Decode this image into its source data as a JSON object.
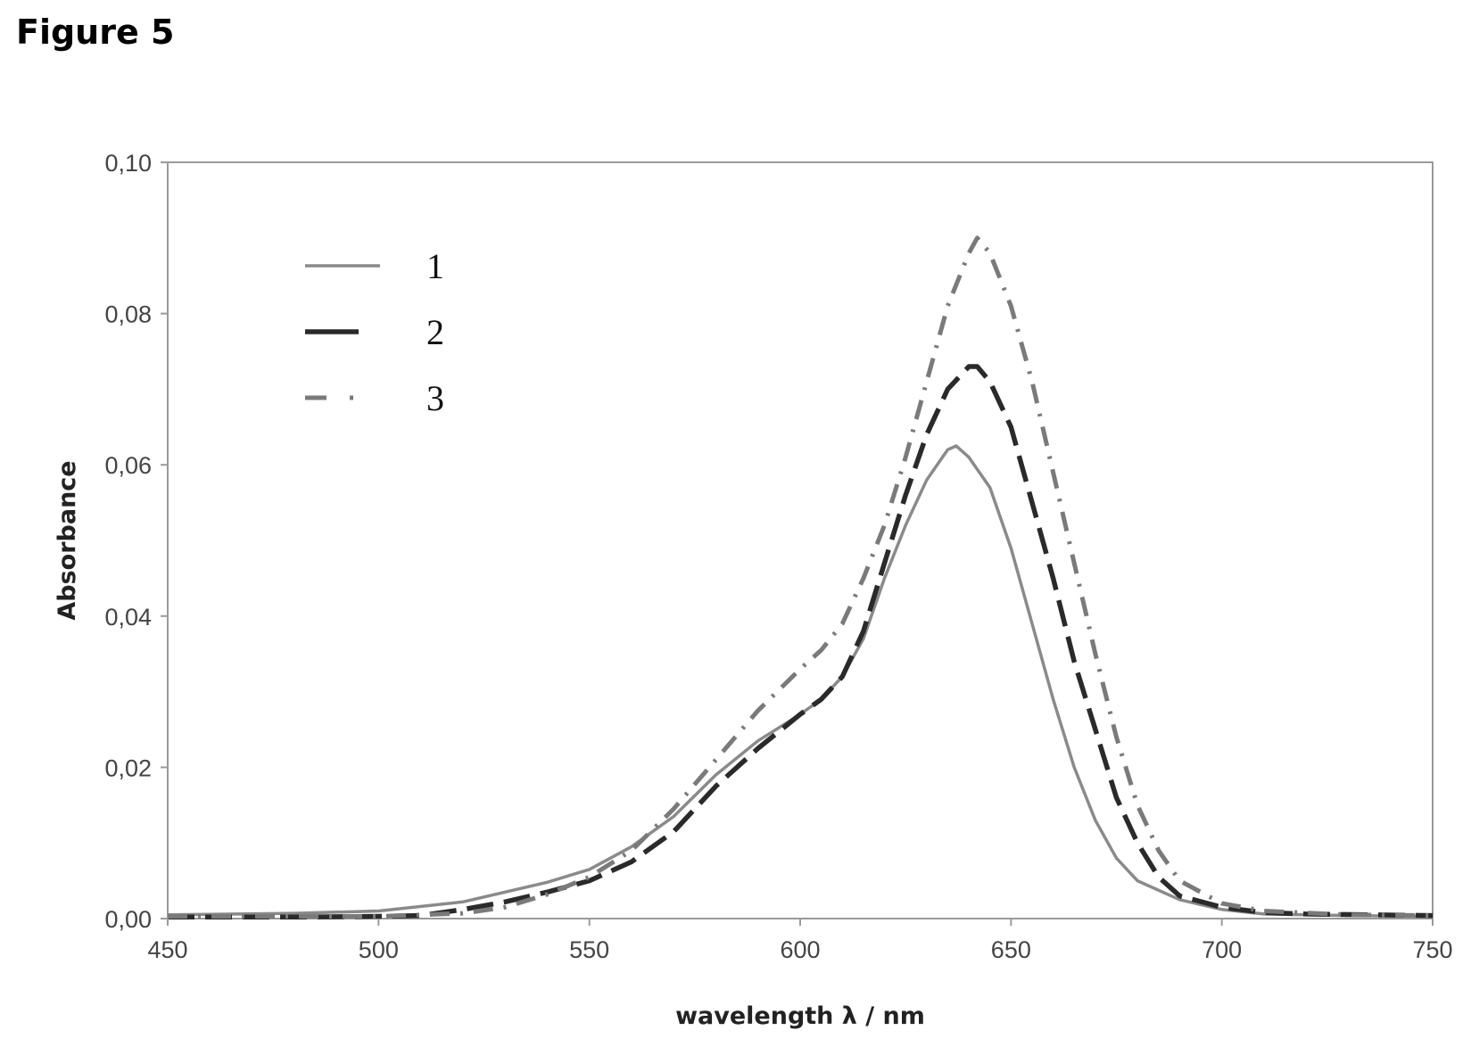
{
  "figure_title": "Figure 5",
  "chart_data": {
    "type": "line",
    "xlabel": "wavelength λ / nm",
    "ylabel": "Absorbance",
    "xlim": [
      450,
      750
    ],
    "ylim": [
      0,
      0.1
    ],
    "x_ticks": [
      450,
      500,
      550,
      600,
      650,
      700,
      750
    ],
    "x_tick_labels": [
      "450",
      "500",
      "550",
      "600",
      "650",
      "700",
      "750"
    ],
    "y_ticks": [
      0,
      0.02,
      0.04,
      0.06,
      0.08,
      0.1
    ],
    "y_tick_labels": [
      "0,00",
      "0,02",
      "0,04",
      "0,06",
      "0,08",
      "0,10"
    ],
    "grid": false,
    "legend_position": "top-left",
    "series": [
      {
        "name": "1",
        "style": "solid",
        "color": "#8a8a8a",
        "points": [
          [
            450,
            0.0005
          ],
          [
            480,
            0.0007
          ],
          [
            500,
            0.001
          ],
          [
            520,
            0.0022
          ],
          [
            540,
            0.0048
          ],
          [
            550,
            0.0065
          ],
          [
            560,
            0.0095
          ],
          [
            570,
            0.0135
          ],
          [
            580,
            0.019
          ],
          [
            590,
            0.0235
          ],
          [
            600,
            0.027
          ],
          [
            605,
            0.029
          ],
          [
            610,
            0.032
          ],
          [
            615,
            0.037
          ],
          [
            620,
            0.045
          ],
          [
            625,
            0.052
          ],
          [
            630,
            0.058
          ],
          [
            635,
            0.062
          ],
          [
            637,
            0.0625
          ],
          [
            640,
            0.061
          ],
          [
            645,
            0.057
          ],
          [
            650,
            0.049
          ],
          [
            655,
            0.039
          ],
          [
            660,
            0.029
          ],
          [
            665,
            0.02
          ],
          [
            670,
            0.013
          ],
          [
            675,
            0.008
          ],
          [
            680,
            0.005
          ],
          [
            690,
            0.0025
          ],
          [
            700,
            0.0012
          ],
          [
            710,
            0.0006
          ],
          [
            730,
            0.0004
          ],
          [
            750,
            0.0003
          ]
        ]
      },
      {
        "name": "2",
        "style": "dashed",
        "color": "#2a2a2a",
        "points": [
          [
            450,
            0.0002
          ],
          [
            480,
            0.0002
          ],
          [
            500,
            0.0003
          ],
          [
            510,
            0.0004
          ],
          [
            520,
            0.0012
          ],
          [
            530,
            0.0022
          ],
          [
            540,
            0.0035
          ],
          [
            550,
            0.005
          ],
          [
            560,
            0.0075
          ],
          [
            570,
            0.0115
          ],
          [
            580,
            0.0175
          ],
          [
            590,
            0.0225
          ],
          [
            600,
            0.027
          ],
          [
            605,
            0.029
          ],
          [
            610,
            0.032
          ],
          [
            615,
            0.038
          ],
          [
            620,
            0.047
          ],
          [
            625,
            0.056
          ],
          [
            630,
            0.064
          ],
          [
            635,
            0.07
          ],
          [
            640,
            0.073
          ],
          [
            642,
            0.073
          ],
          [
            645,
            0.071
          ],
          [
            650,
            0.065
          ],
          [
            655,
            0.055
          ],
          [
            660,
            0.045
          ],
          [
            665,
            0.034
          ],
          [
            670,
            0.025
          ],
          [
            675,
            0.016
          ],
          [
            680,
            0.01
          ],
          [
            685,
            0.0055
          ],
          [
            690,
            0.003
          ],
          [
            700,
            0.0015
          ],
          [
            710,
            0.0008
          ],
          [
            720,
            0.0006
          ],
          [
            735,
            0.0005
          ],
          [
            750,
            0.0004
          ]
        ]
      },
      {
        "name": "3",
        "style": "dash-dot",
        "color": "#7a7a7a",
        "points": [
          [
            450,
            0.0003
          ],
          [
            500,
            0.0003
          ],
          [
            520,
            0.0007
          ],
          [
            530,
            0.0015
          ],
          [
            540,
            0.0032
          ],
          [
            550,
            0.0055
          ],
          [
            560,
            0.009
          ],
          [
            570,
            0.0145
          ],
          [
            580,
            0.021
          ],
          [
            590,
            0.0275
          ],
          [
            600,
            0.033
          ],
          [
            605,
            0.0355
          ],
          [
            610,
            0.039
          ],
          [
            615,
            0.045
          ],
          [
            620,
            0.052
          ],
          [
            625,
            0.061
          ],
          [
            630,
            0.071
          ],
          [
            635,
            0.081
          ],
          [
            640,
            0.088
          ],
          [
            642,
            0.09
          ],
          [
            645,
            0.088
          ],
          [
            650,
            0.081
          ],
          [
            655,
            0.071
          ],
          [
            660,
            0.059
          ],
          [
            665,
            0.047
          ],
          [
            670,
            0.035
          ],
          [
            675,
            0.024
          ],
          [
            680,
            0.015
          ],
          [
            685,
            0.009
          ],
          [
            690,
            0.005
          ],
          [
            700,
            0.002
          ],
          [
            710,
            0.001
          ],
          [
            730,
            0.0005
          ],
          [
            750,
            0.0004
          ]
        ]
      }
    ]
  }
}
